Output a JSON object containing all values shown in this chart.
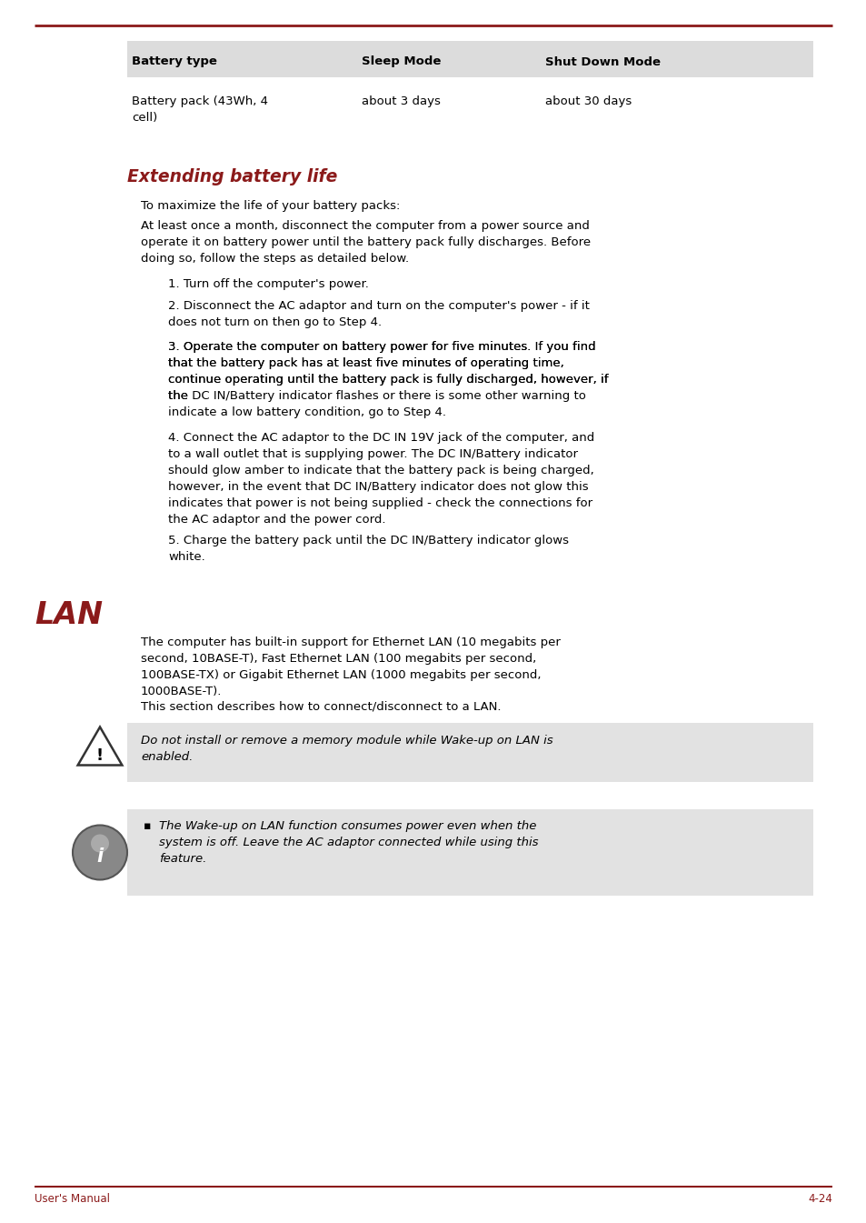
{
  "page_bg": "#ffffff",
  "top_line_color": "#8B1A1A",
  "footer_line_color": "#8B1A1A",
  "footer_left": "User's Manual",
  "footer_right": "4-24",
  "footer_color": "#8B1A1A",
  "section_title_1": "Extending battery life",
  "section_title_1_color": "#8B1A1A",
  "section_title_2": "LAN",
  "section_title_2_color": "#8B1A1A",
  "table_header_bg": "#DCDCDC",
  "warning_bg": "#E2E2E2",
  "info_bg": "#E2E2E2",
  "table_headers": [
    "Battery type",
    "Sleep Mode",
    "Shut Down Mode"
  ],
  "table_row": [
    "Battery pack (43Wh, 4\ncell)",
    "about 3 days",
    "about 30 days"
  ],
  "lan_text_1": "The computer has built-in support for Ethernet LAN (10 megabits per\nsecond, 10BASE-T), Fast Ethernet LAN (100 megabits per second,\n100BASE-TX) or Gigabit Ethernet LAN (1000 megabits per second,\n1000BASE-T).",
  "lan_text_2": "This section describes how to connect/disconnect to a LAN.",
  "warning_text": "Do not install or remove a memory module while Wake-up on LAN is\nenabled.",
  "info_text": "The Wake-up on LAN function consumes power even when the\nsystem is off. Leave the AC adaptor connected while using this\nfeature."
}
